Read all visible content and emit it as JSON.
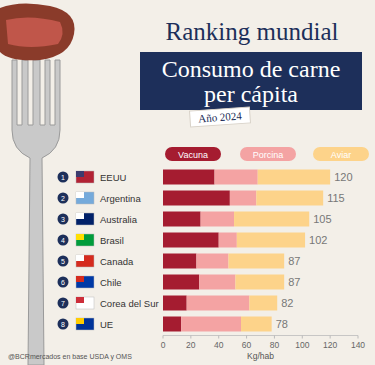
{
  "chart_data": {
    "type": "bar",
    "orientation": "horizontal",
    "stacked": true,
    "title": "Ranking mundial",
    "subtitle": "Consumo de carne per cápita",
    "year_label": "Año 2024",
    "x_label": "Kg/hab",
    "source": "@BCRmercados en base  USDA y OMS",
    "categories": [
      "EEUU",
      "Argentina",
      "Australia",
      "Brasil",
      "Canada",
      "Chile",
      "Corea del Sur",
      "UE"
    ],
    "ranks": [
      1,
      2,
      3,
      4,
      5,
      6,
      7,
      8
    ],
    "totals": [
      120,
      115,
      105,
      102,
      87,
      87,
      82,
      78
    ],
    "series": [
      {
        "name": "Vacuna",
        "color": "#a51c30",
        "values": [
          37,
          48,
          27,
          40,
          24,
          26,
          17,
          13
        ]
      },
      {
        "name": "Porcina",
        "color": "#f4a3a3",
        "values": [
          31,
          19,
          24,
          13,
          23,
          26,
          45,
          43
        ]
      },
      {
        "name": "Aviar",
        "color": "#fdd38a",
        "values": [
          52,
          48,
          54,
          49,
          40,
          35,
          20,
          22
        ]
      }
    ],
    "xlim": [
      0,
      140
    ],
    "xticks": [
      0,
      20,
      40,
      60,
      80,
      100,
      120,
      140
    ],
    "grid": false,
    "legend": "top"
  }
}
